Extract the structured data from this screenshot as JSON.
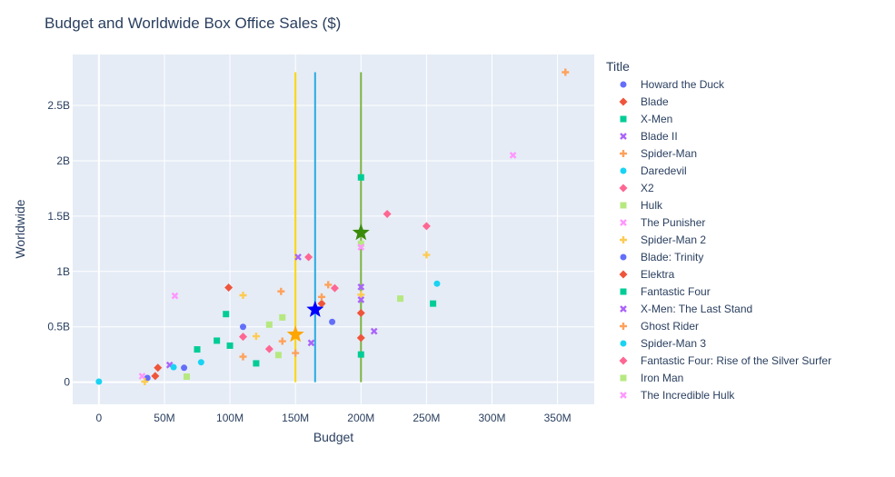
{
  "chart_data": {
    "type": "scatter",
    "title": "Budget and Worldwide Box Office Sales ($)",
    "xlabel": "Budget",
    "ylabel": "Worldwide",
    "legend_title": "Title",
    "legend_position": "right",
    "grid": true,
    "xlim": [
      -20000000,
      378000000
    ],
    "ylim": [
      -200000000,
      2960000000
    ],
    "x_ticks": [
      0,
      50000000,
      100000000,
      150000000,
      200000000,
      250000000,
      300000000,
      350000000
    ],
    "x_tick_labels": [
      "0",
      "50M",
      "100M",
      "150M",
      "200M",
      "250M",
      "300M",
      "350M"
    ],
    "y_ticks": [
      0,
      500000000,
      1000000000,
      1500000000,
      2000000000,
      2500000000
    ],
    "y_tick_labels": [
      "0",
      "0.5B",
      "1B",
      "1.5B",
      "2B",
      "2.5B"
    ],
    "series": [
      {
        "name": "Howard the Duck",
        "color": "#636efa",
        "symbol": "circle",
        "points": [
          [
            37000000,
            38000000
          ],
          [
            65000000,
            130000000
          ],
          [
            110000000,
            500000000
          ],
          [
            178000000,
            545000000
          ]
        ]
      },
      {
        "name": "Blade",
        "color": "#EF553B",
        "symbol": "diamond",
        "points": [
          [
            43000000,
            55000000
          ],
          [
            45000000,
            130000000
          ],
          [
            99000000,
            855000000
          ],
          [
            170000000,
            710000000
          ],
          [
            200000000,
            625000000
          ],
          [
            200000000,
            400000000
          ]
        ]
      },
      {
        "name": "X-Men",
        "color": "#00cc96",
        "symbol": "square",
        "points": [
          [
            75000000,
            296000000
          ],
          [
            90000000,
            375000000
          ],
          [
            97000000,
            615000000
          ],
          [
            100000000,
            330000000
          ],
          [
            120000000,
            170000000
          ],
          [
            200000000,
            1850000000
          ],
          [
            255000000,
            710000000
          ]
        ]
      },
      {
        "name": "Blade II",
        "color": "#ab63fa",
        "symbol": "x",
        "points": [
          [
            54000000,
            155000000
          ],
          [
            152000000,
            1130000000
          ],
          [
            162000000,
            355000000
          ],
          [
            200000000,
            860000000
          ],
          [
            210000000,
            460000000
          ]
        ]
      },
      {
        "name": "Spider-Man",
        "color": "#FFA15A",
        "symbol": "cross",
        "points": [
          [
            110000000,
            230000000
          ],
          [
            139000000,
            820000000
          ],
          [
            140000000,
            370000000
          ],
          [
            150000000,
            263000000
          ],
          [
            170000000,
            770000000
          ],
          [
            175000000,
            880000000
          ],
          [
            356000000,
            2800000000
          ]
        ]
      },
      {
        "name": "Daredevil",
        "color": "#19d3f3",
        "symbol": "circle",
        "points": [
          [
            0,
            5000000
          ],
          [
            57000000,
            135000000
          ],
          [
            78000000,
            180000000
          ],
          [
            258000000,
            890000000
          ]
        ]
      },
      {
        "name": "X2",
        "color": "#FF6692",
        "symbol": "diamond",
        "points": [
          [
            110000000,
            410000000
          ],
          [
            130000000,
            300000000
          ],
          [
            160000000,
            1130000000
          ],
          [
            180000000,
            850000000
          ],
          [
            220000000,
            1520000000
          ],
          [
            250000000,
            1410000000
          ]
        ]
      },
      {
        "name": "Hulk",
        "color": "#B6E880",
        "symbol": "square",
        "points": [
          [
            67000000,
            50000000
          ],
          [
            130000000,
            520000000
          ],
          [
            137000000,
            245000000
          ],
          [
            140000000,
            585000000
          ],
          [
            200000000,
            1250000000
          ],
          [
            230000000,
            755000000
          ]
        ]
      },
      {
        "name": "The Punisher",
        "color": "#FF97FF",
        "symbol": "x",
        "points": [
          [
            33000000,
            54000000
          ],
          [
            58000000,
            780000000
          ],
          [
            200000000,
            1220000000
          ],
          [
            316000000,
            2050000000
          ]
        ]
      },
      {
        "name": "Spider-Man 2",
        "color": "#FECB52",
        "symbol": "cross",
        "points": [
          [
            35000000,
            5000000
          ],
          [
            110000000,
            785000000
          ],
          [
            120000000,
            415000000
          ],
          [
            200000000,
            790000000
          ],
          [
            250000000,
            1150000000
          ]
        ]
      },
      {
        "name": "Blade: Trinity",
        "color": "#636efa",
        "symbol": "circle",
        "points": [
          [
            165000000,
            650000000
          ]
        ]
      },
      {
        "name": "Elektra",
        "color": "#EF553B",
        "symbol": "diamond",
        "points": [
          [
            165000000,
            655000000
          ]
        ]
      },
      {
        "name": "Fantastic Four",
        "color": "#00cc96",
        "symbol": "square",
        "points": [
          [
            200000000,
            250000000
          ]
        ]
      },
      {
        "name": "X-Men: The Last Stand",
        "color": "#ab63fa",
        "symbol": "x",
        "points": [
          [
            200000000,
            745000000
          ]
        ]
      },
      {
        "name": "Ghost Rider",
        "color": "#FFA15A",
        "symbol": "cross",
        "points": []
      },
      {
        "name": "Spider-Man 3",
        "color": "#19d3f3",
        "symbol": "circle",
        "points": []
      },
      {
        "name": "Fantastic Four: Rise of the Silver Surfer",
        "color": "#FF6692",
        "symbol": "diamond",
        "points": []
      },
      {
        "name": "Iron Man",
        "color": "#B6E880",
        "symbol": "square",
        "points": []
      },
      {
        "name": "The Incredible Hulk",
        "color": "#FF97FF",
        "symbol": "x",
        "points": []
      }
    ],
    "vertical_lines": [
      {
        "x": 150000000,
        "y_from": 0,
        "y_to": 2800000000,
        "color": "#FFD700"
      },
      {
        "x": 165000000,
        "y_from": 0,
        "y_to": 2800000000,
        "color": "#29ABE2"
      },
      {
        "x": 200000000,
        "y_from": 0,
        "y_to": 2800000000,
        "color": "#7CB342"
      }
    ],
    "star_markers": [
      {
        "x": 150000000,
        "y": 430000000,
        "color": "#FFA500"
      },
      {
        "x": 165000000,
        "y": 655000000,
        "color": "#0000FF"
      },
      {
        "x": 200000000,
        "y": 1350000000,
        "color": "#3A8B0A"
      }
    ]
  }
}
